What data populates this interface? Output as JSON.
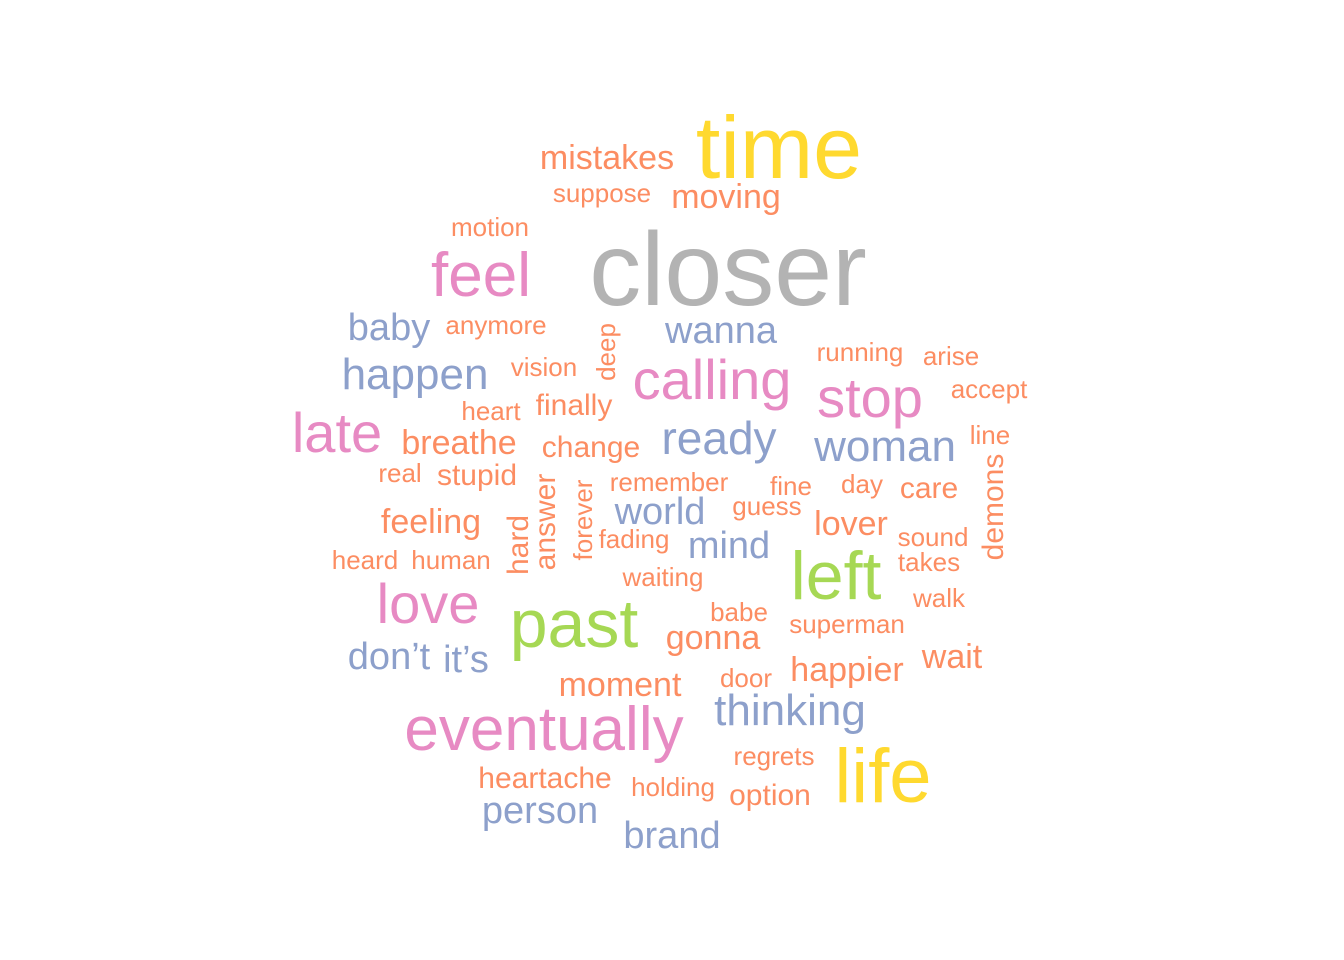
{
  "palette": {
    "gray": "#B3B3B3",
    "yellow": "#FFD92F",
    "pink": "#E78AC3",
    "blue": "#8DA0CB",
    "green": "#A6D854",
    "orange": "#FC8D62"
  },
  "words": [
    {
      "text": "closer",
      "weight": 100,
      "color": "gray"
    },
    {
      "text": "time",
      "weight": 80,
      "color": "yellow"
    },
    {
      "text": "life",
      "weight": 75,
      "color": "yellow"
    },
    {
      "text": "past",
      "weight": 68,
      "color": "green"
    },
    {
      "text": "left",
      "weight": 68,
      "color": "green"
    },
    {
      "text": "eventually",
      "weight": 60,
      "color": "pink"
    },
    {
      "text": "feel",
      "weight": 60,
      "color": "pink"
    },
    {
      "text": "love",
      "weight": 55,
      "color": "pink"
    },
    {
      "text": "calling",
      "weight": 55,
      "color": "pink"
    },
    {
      "text": "stop",
      "weight": 55,
      "color": "pink"
    },
    {
      "text": "late",
      "weight": 55,
      "color": "pink"
    },
    {
      "text": "ready",
      "weight": 48,
      "color": "blue"
    },
    {
      "text": "happen",
      "weight": 45,
      "color": "blue"
    },
    {
      "text": "woman",
      "weight": 45,
      "color": "blue"
    },
    {
      "text": "thinking",
      "weight": 45,
      "color": "blue"
    },
    {
      "text": "baby",
      "weight": 40,
      "color": "blue"
    },
    {
      "text": "wanna",
      "weight": 40,
      "color": "blue"
    },
    {
      "text": "world",
      "weight": 40,
      "color": "blue"
    },
    {
      "text": "mind",
      "weight": 40,
      "color": "blue"
    },
    {
      "text": "don’t",
      "weight": 40,
      "color": "blue"
    },
    {
      "text": "it’s",
      "weight": 40,
      "color": "blue"
    },
    {
      "text": "person",
      "weight": 40,
      "color": "blue"
    },
    {
      "text": "brand",
      "weight": 40,
      "color": "blue"
    },
    {
      "text": "mistakes",
      "weight": 35,
      "color": "orange"
    },
    {
      "text": "moving",
      "weight": 35,
      "color": "orange"
    },
    {
      "text": "feeling",
      "weight": 35,
      "color": "orange"
    },
    {
      "text": "breathe",
      "weight": 35,
      "color": "orange"
    },
    {
      "text": "moment",
      "weight": 35,
      "color": "orange"
    },
    {
      "text": "gonna",
      "weight": 35,
      "color": "orange"
    },
    {
      "text": "happier",
      "weight": 35,
      "color": "orange"
    },
    {
      "text": "lover",
      "weight": 35,
      "color": "orange"
    },
    {
      "text": "wait",
      "weight": 35,
      "color": "orange"
    },
    {
      "text": "heartache",
      "weight": 30,
      "color": "orange"
    },
    {
      "text": "stupid",
      "weight": 30,
      "color": "orange"
    },
    {
      "text": "change",
      "weight": 30,
      "color": "orange"
    },
    {
      "text": "finally",
      "weight": 30,
      "color": "orange"
    },
    {
      "text": "option",
      "weight": 30,
      "color": "orange"
    },
    {
      "text": "care",
      "weight": 30,
      "color": "orange"
    },
    {
      "text": "hard",
      "weight": 30,
      "color": "orange"
    },
    {
      "text": "answer",
      "weight": 30,
      "color": "orange"
    },
    {
      "text": "demons",
      "weight": 30,
      "color": "orange"
    },
    {
      "text": "suppose",
      "weight": 25,
      "color": "orange"
    },
    {
      "text": "motion",
      "weight": 25,
      "color": "orange"
    },
    {
      "text": "anymore",
      "weight": 25,
      "color": "orange"
    },
    {
      "text": "vision",
      "weight": 25,
      "color": "orange"
    },
    {
      "text": "heart",
      "weight": 25,
      "color": "orange"
    },
    {
      "text": "running",
      "weight": 25,
      "color": "orange"
    },
    {
      "text": "arise",
      "weight": 25,
      "color": "orange"
    },
    {
      "text": "accept",
      "weight": 25,
      "color": "orange"
    },
    {
      "text": "line",
      "weight": 25,
      "color": "orange"
    },
    {
      "text": "real",
      "weight": 25,
      "color": "orange"
    },
    {
      "text": "remember",
      "weight": 25,
      "color": "orange"
    },
    {
      "text": "fine",
      "weight": 25,
      "color": "orange"
    },
    {
      "text": "day",
      "weight": 25,
      "color": "orange"
    },
    {
      "text": "guess",
      "weight": 25,
      "color": "orange"
    },
    {
      "text": "sound",
      "weight": 25,
      "color": "orange"
    },
    {
      "text": "takes",
      "weight": 25,
      "color": "orange"
    },
    {
      "text": "fading",
      "weight": 25,
      "color": "orange"
    },
    {
      "text": "heard",
      "weight": 25,
      "color": "orange"
    },
    {
      "text": "human",
      "weight": 25,
      "color": "orange"
    },
    {
      "text": "waiting",
      "weight": 25,
      "color": "orange"
    },
    {
      "text": "walk",
      "weight": 25,
      "color": "orange"
    },
    {
      "text": "babe",
      "weight": 25,
      "color": "orange"
    },
    {
      "text": "superman",
      "weight": 25,
      "color": "orange"
    },
    {
      "text": "door",
      "weight": 25,
      "color": "orange"
    },
    {
      "text": "regrets",
      "weight": 25,
      "color": "orange"
    },
    {
      "text": "holding",
      "weight": 25,
      "color": "orange"
    },
    {
      "text": "deep",
      "weight": 25,
      "color": "orange"
    },
    {
      "text": "forever",
      "weight": 25,
      "color": "orange"
    }
  ]
}
